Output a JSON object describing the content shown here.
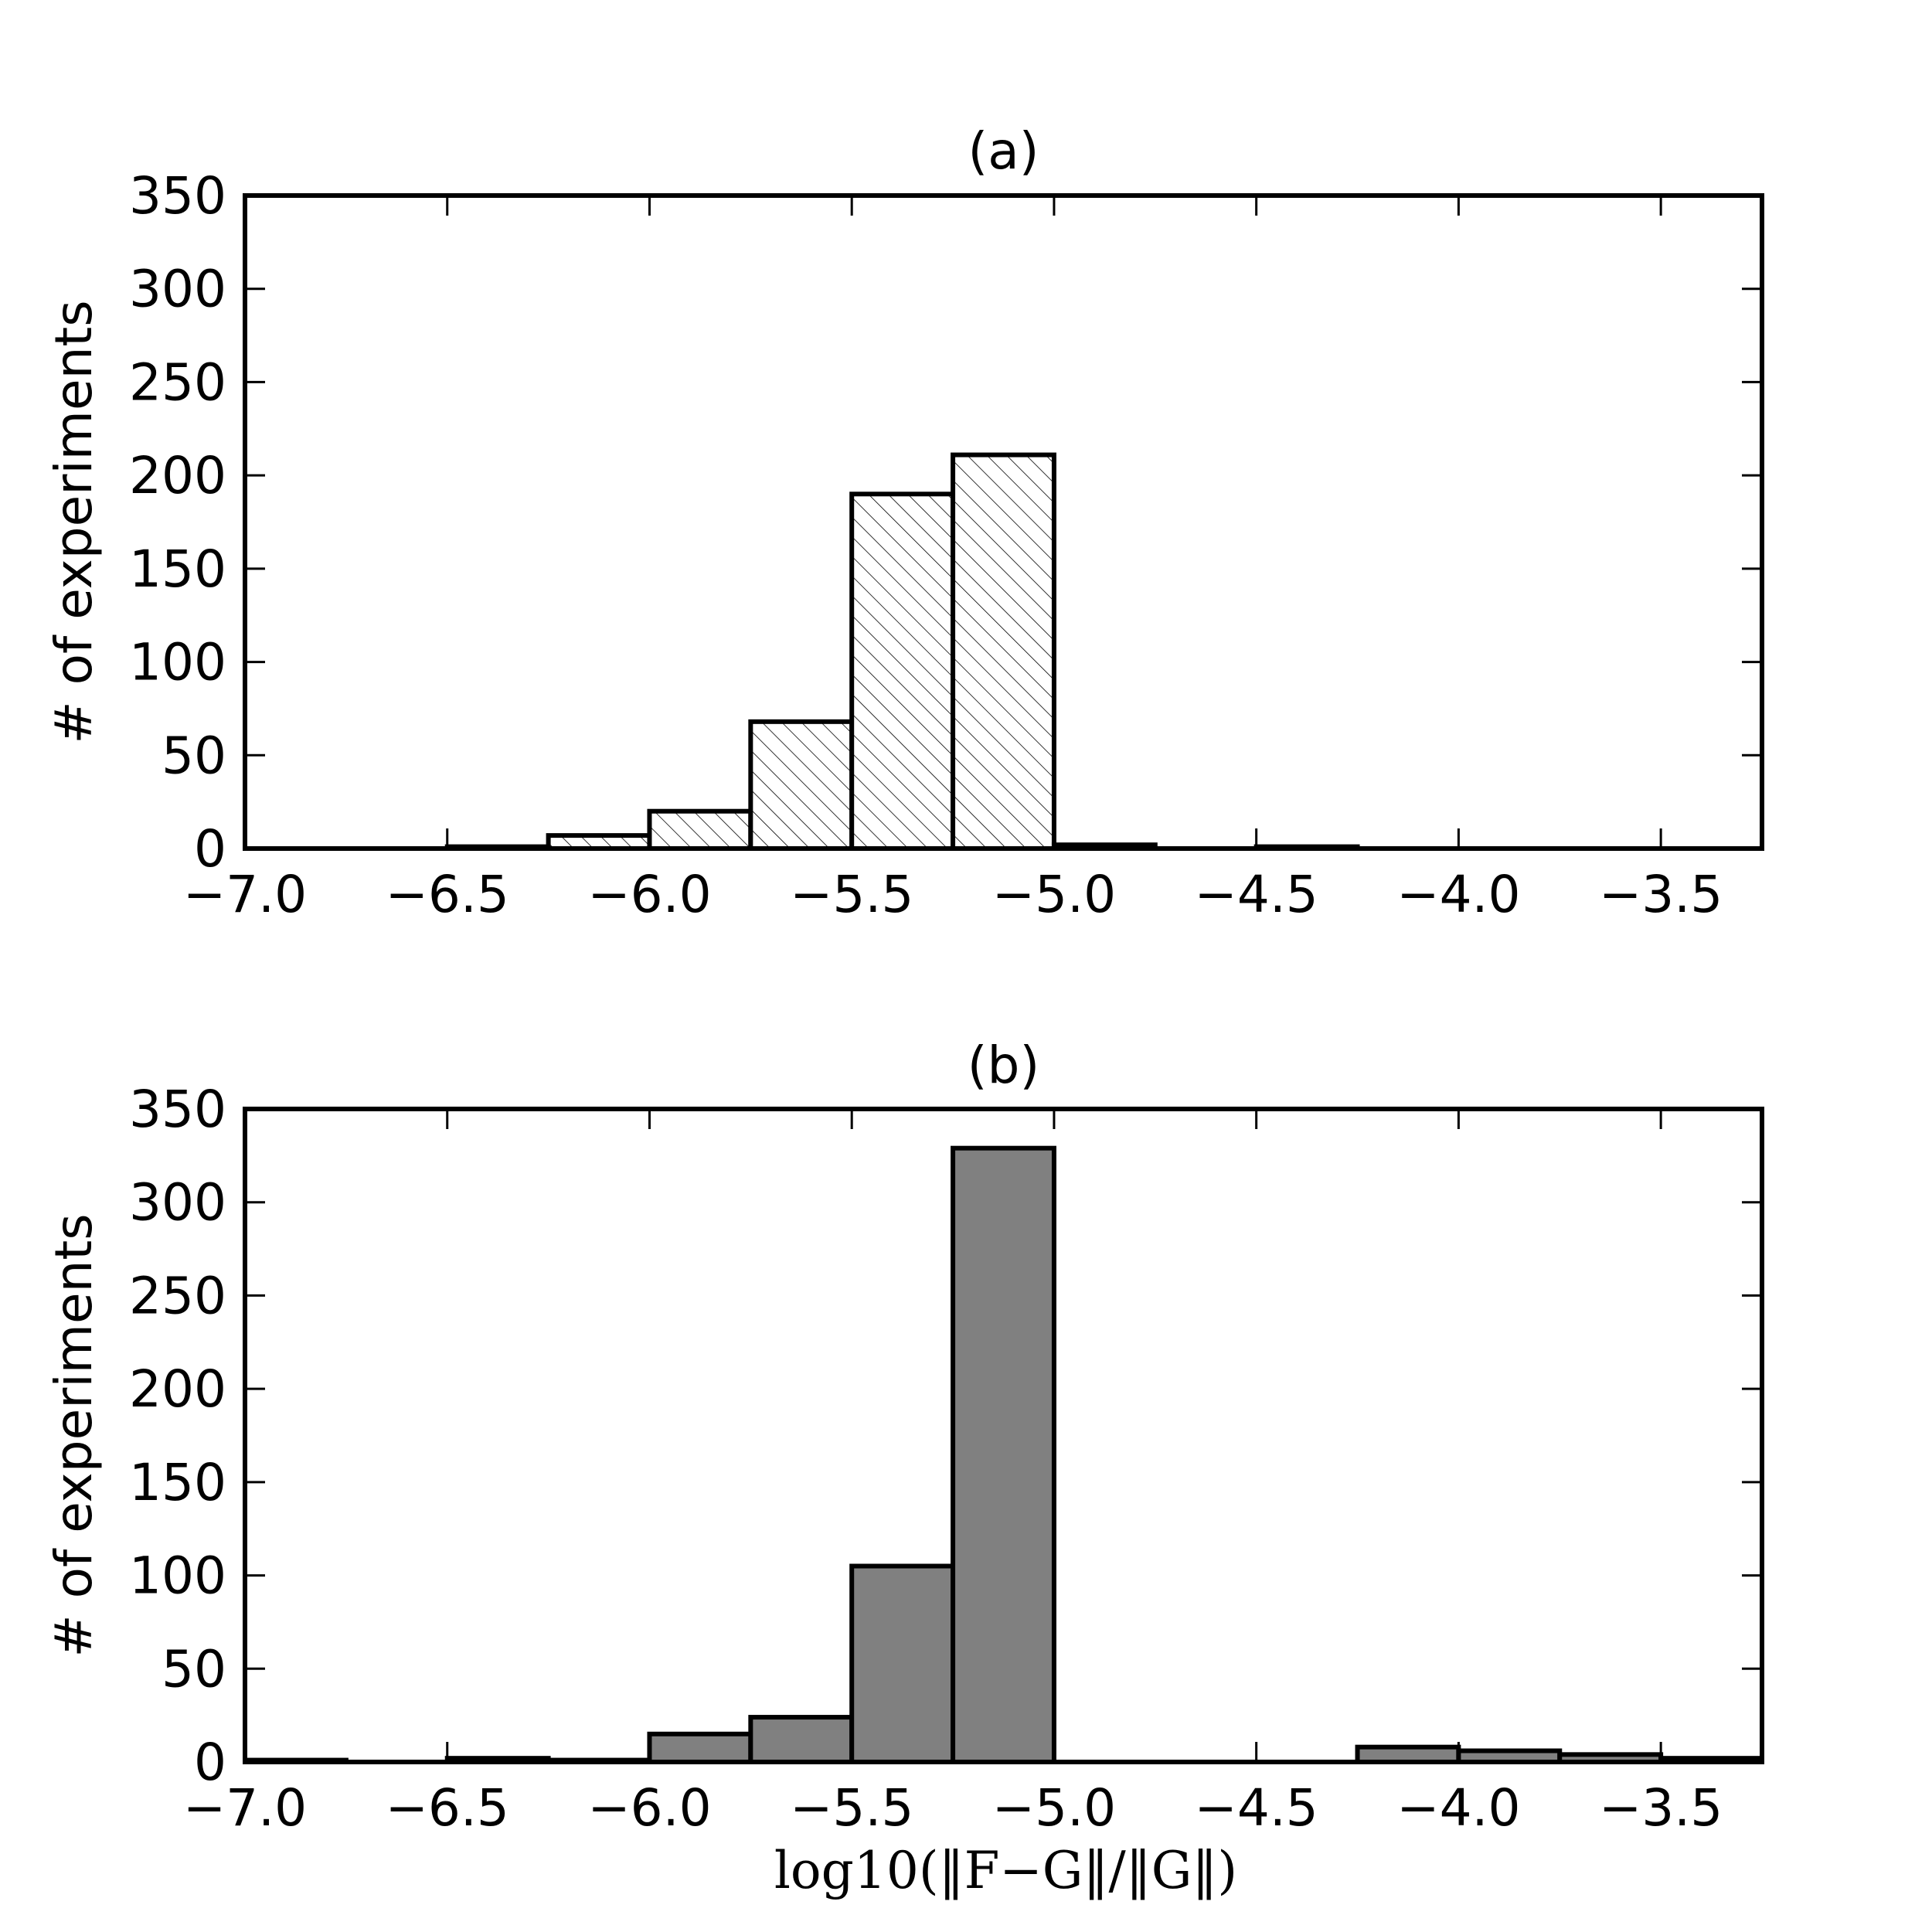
{
  "chart_data": [
    {
      "type": "bar",
      "title": "(a)",
      "ylabel": "# of experiments",
      "xlabel": "",
      "xlim": [
        -7.0,
        -3.25
      ],
      "ylim": [
        0,
        350
      ],
      "xticks": [
        -7.0,
        -6.5,
        -6.0,
        -5.5,
        -5.0,
        -4.5,
        -4.0,
        -3.5
      ],
      "xtick_labels": [
        "−7.0",
        "−6.5",
        "−6.0",
        "−5.5",
        "−5.0",
        "−4.5",
        "−4.0",
        "−3.5"
      ],
      "yticks": [
        0,
        50,
        100,
        150,
        200,
        250,
        300,
        350
      ],
      "ytick_labels": [
        "0",
        "50",
        "100",
        "150",
        "200",
        "250",
        "300",
        "350"
      ],
      "fill": "hatch",
      "bar_color": "#ffffff",
      "bins": [
        {
          "x0": -6.5,
          "x1": -6.25,
          "count": 1
        },
        {
          "x0": -6.25,
          "x1": -6.0,
          "count": 7
        },
        {
          "x0": -6.0,
          "x1": -5.75,
          "count": 20
        },
        {
          "x0": -5.75,
          "x1": -5.5,
          "count": 68
        },
        {
          "x0": -5.5,
          "x1": -5.25,
          "count": 190
        },
        {
          "x0": -5.25,
          "x1": -5.0,
          "count": 211
        },
        {
          "x0": -5.0,
          "x1": -4.75,
          "count": 2
        },
        {
          "x0": -4.5,
          "x1": -4.25,
          "count": 1
        }
      ]
    },
    {
      "type": "bar",
      "title": "(b)",
      "ylabel": "# of experiments",
      "xlabel": "log10(‖F−G‖/‖G‖)",
      "xlim": [
        -7.0,
        -3.25
      ],
      "ylim": [
        0,
        350
      ],
      "xticks": [
        -7.0,
        -6.5,
        -6.0,
        -5.5,
        -5.0,
        -4.5,
        -4.0,
        -3.5
      ],
      "xtick_labels": [
        "−7.0",
        "−6.5",
        "−6.0",
        "−5.5",
        "−5.0",
        "−4.5",
        "−4.0",
        "−3.5"
      ],
      "yticks": [
        0,
        50,
        100,
        150,
        200,
        250,
        300,
        350
      ],
      "ytick_labels": [
        "0",
        "50",
        "100",
        "150",
        "200",
        "250",
        "300",
        "350"
      ],
      "fill": "solid",
      "bar_color": "#808080",
      "bins": [
        {
          "x0": -7.0,
          "x1": -6.75,
          "count": 1
        },
        {
          "x0": -6.5,
          "x1": -6.25,
          "count": 2
        },
        {
          "x0": -6.25,
          "x1": -6.0,
          "count": 1
        },
        {
          "x0": -6.0,
          "x1": -5.75,
          "count": 15
        },
        {
          "x0": -5.75,
          "x1": -5.5,
          "count": 24
        },
        {
          "x0": -5.5,
          "x1": -5.25,
          "count": 105
        },
        {
          "x0": -5.25,
          "x1": -5.0,
          "count": 329
        },
        {
          "x0": -4.25,
          "x1": -4.0,
          "count": 8
        },
        {
          "x0": -4.0,
          "x1": -3.75,
          "count": 6
        },
        {
          "x0": -3.75,
          "x1": -3.5,
          "count": 4
        },
        {
          "x0": -3.5,
          "x1": -3.25,
          "count": 2
        }
      ]
    }
  ]
}
